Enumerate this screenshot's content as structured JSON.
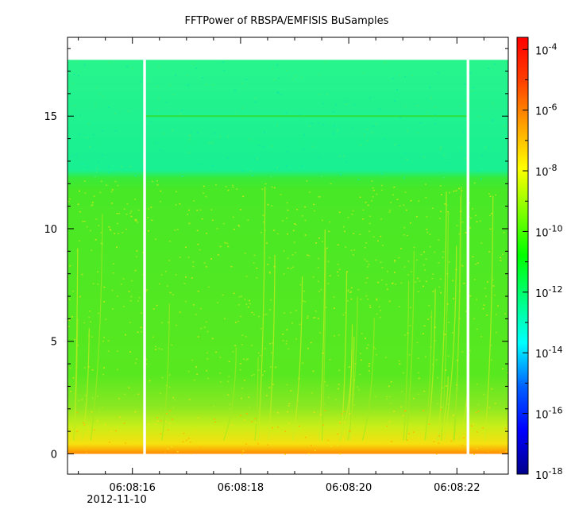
{
  "chart_data": {
    "type": "heatmap",
    "title": "FFTPower of RBSPA/EMFISIS  BuSamples",
    "xlabel": "",
    "ylabel": "",
    "x_ticks": [
      "06:08:16",
      "06:08:18",
      "06:08:20",
      "06:08:22"
    ],
    "x_tick_seconds": [
      16,
      18,
      20,
      22
    ],
    "x_date_label": "2012-11-10",
    "xlim_seconds": [
      14.8,
      22.95
    ],
    "y_ticks": [
      "0",
      "5",
      "10",
      "15"
    ],
    "y_tick_values": [
      0,
      5,
      10,
      15
    ],
    "ylim": [
      -0.9,
      18.5
    ],
    "colorbar": {
      "scale": "log",
      "range": [
        -18,
        -3.6
      ],
      "tick_exponents": [
        -18,
        -16,
        -14,
        -12,
        -10,
        -8,
        -6,
        -4
      ],
      "tick_base": "10",
      "colors": [
        "#00008b",
        "#0000ff",
        "#0060ff",
        "#00ffff",
        "#00ff80",
        "#00ff00",
        "#80ff00",
        "#ffff00",
        "#ffa000",
        "#ff4000",
        "#ff0000"
      ]
    },
    "gaps_seconds": [
      [
        16.2,
        16.25
      ],
      [
        22.18,
        22.23
      ]
    ],
    "bands": [
      {
        "freq_range": [
          12.2,
          17.5
        ],
        "log_power": -11.3,
        "color": "#18f290"
      },
      {
        "freq_range": [
          2.0,
          12.2
        ],
        "log_power": -10.3,
        "color": "#50e820"
      },
      {
        "freq_range": [
          0.5,
          2.0
        ],
        "log_power": -9.6,
        "color": "#a8e820"
      },
      {
        "freq_range": [
          0.0,
          0.5
        ],
        "log_power": -8.3,
        "color": "#ffb000"
      }
    ],
    "line_feature": {
      "freq": 15.0,
      "log_power": -10.6,
      "time_range_seconds": [
        16.25,
        22.18
      ]
    }
  }
}
